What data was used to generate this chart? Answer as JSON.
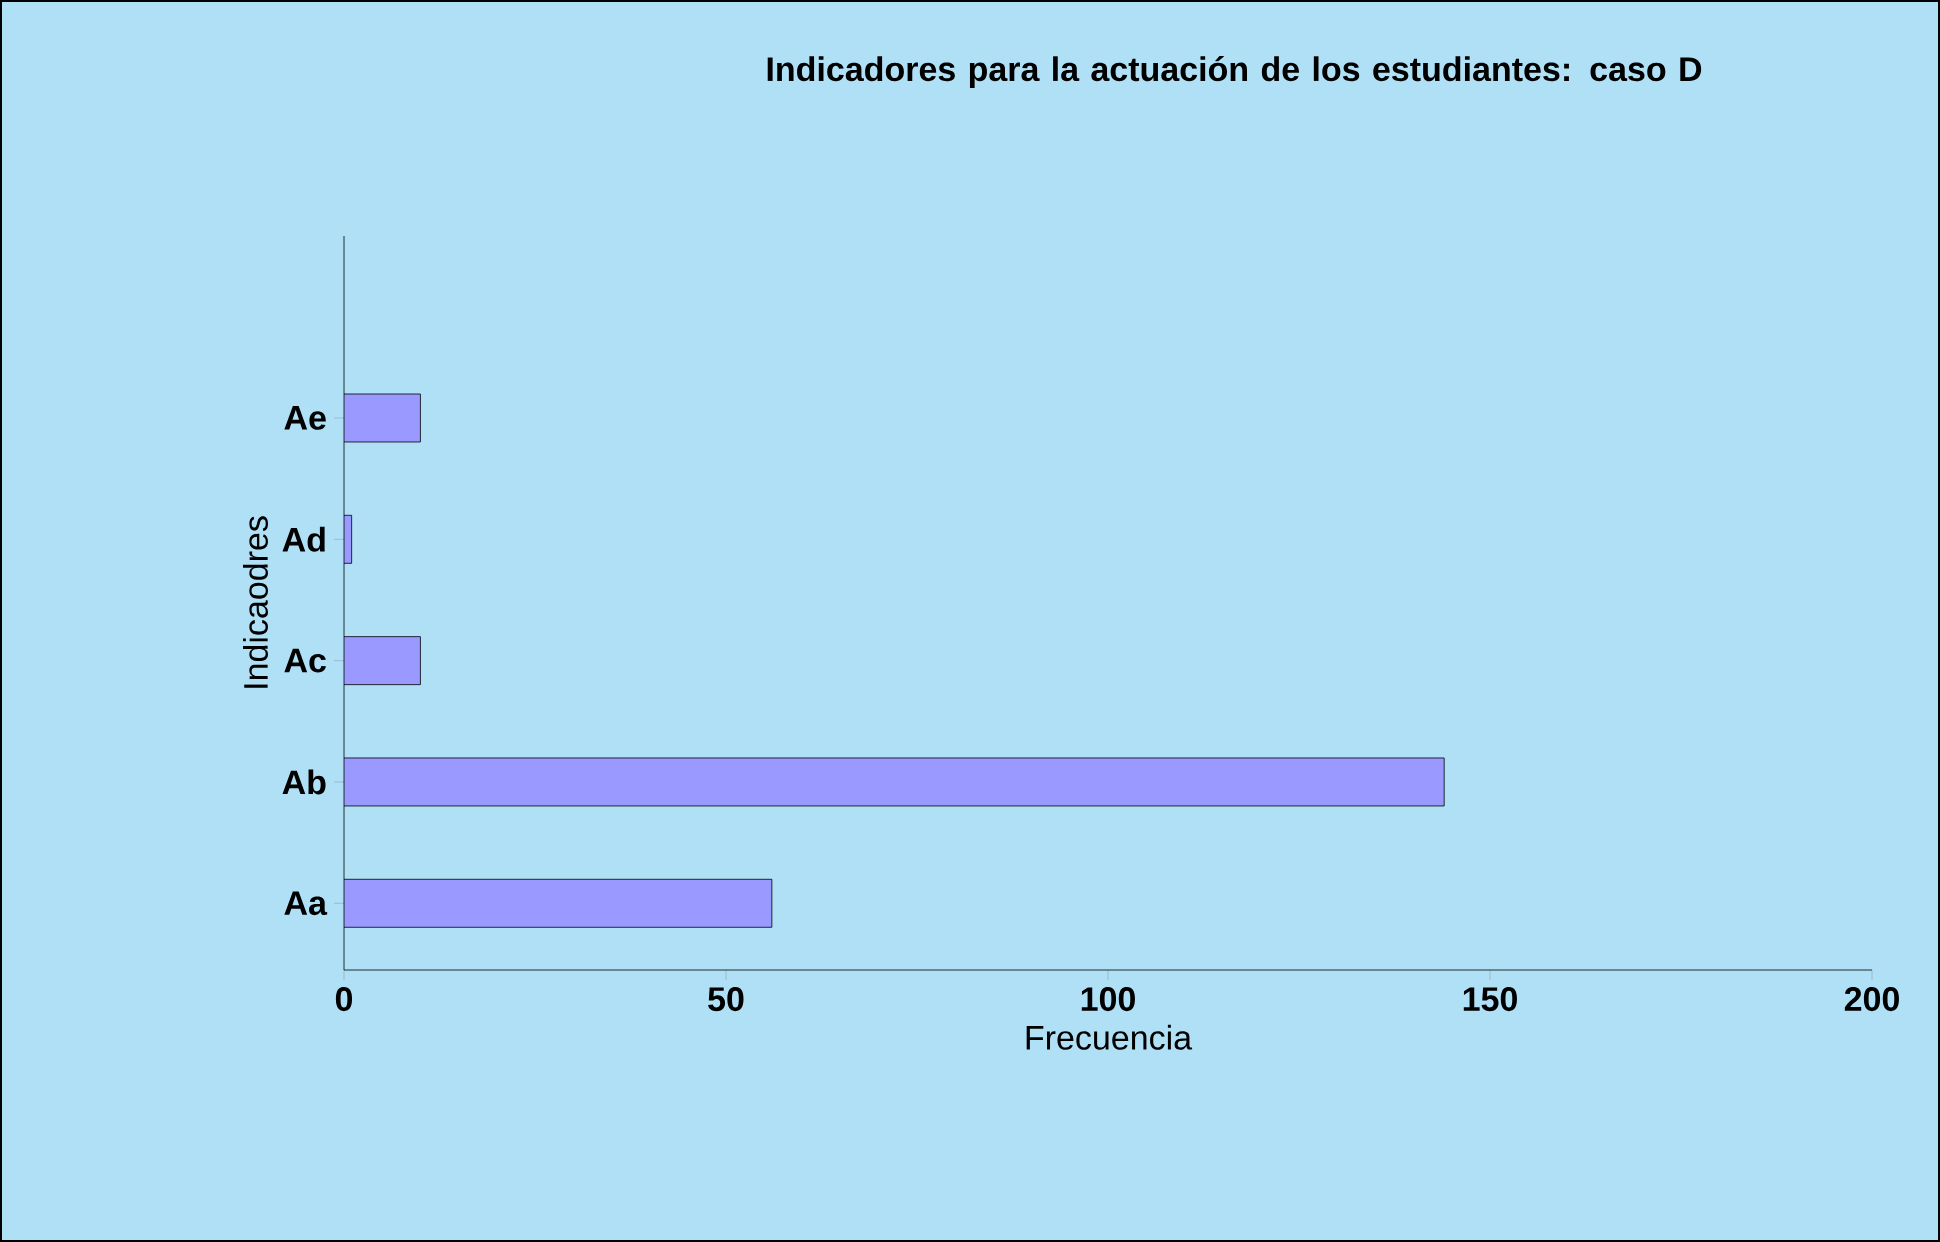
{
  "chart_data": {
    "type": "bar",
    "orientation": "horizontal",
    "title": "Indicadores para la actuación de los estudiantes: caso D",
    "xlabel": "Frecuencia",
    "ylabel": "Indicaodres",
    "categories": [
      "Ae",
      "Ad",
      "Ac",
      "Ab",
      "Aa"
    ],
    "values": [
      10,
      1,
      10,
      144,
      56
    ],
    "color": "#9999ff",
    "xlim": [
      0,
      200
    ],
    "xticks": [
      0,
      50,
      100,
      150,
      200
    ],
    "grid": false
  }
}
